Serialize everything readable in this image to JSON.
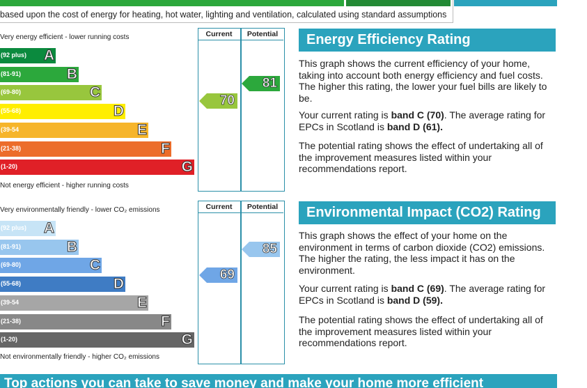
{
  "assumptions_text": "based upon the cost of energy for heating, hot water, lighting and ventilation, calculated using standard assumptions",
  "colors": {
    "accent": "#2ba3bd",
    "border": "#2a8fa8"
  },
  "energy": {
    "top_label": "Very energy efficient - lower running costs",
    "bottom_label": "Not energy efficient - higher running costs",
    "col_current": "Current",
    "col_potential": "Potential",
    "bands": [
      {
        "range": "(92 plus)",
        "letter": "A",
        "color": "#0b8a3e"
      },
      {
        "range": "(81-91)",
        "letter": "B",
        "color": "#2ca83c"
      },
      {
        "range": "(69-80)",
        "letter": "C",
        "color": "#98c63d"
      },
      {
        "range": "(55-68)",
        "letter": "D",
        "color": "#ffee00"
      },
      {
        "range": "(39-54",
        "letter": "E",
        "color": "#f6b52b"
      },
      {
        "range": "(21-38)",
        "letter": "F",
        "color": "#ec6d2b"
      },
      {
        "range": "(1-20)",
        "letter": "G",
        "color": "#e02027"
      }
    ],
    "current": "70",
    "potential": "81",
    "current_color": "#98c63d",
    "potential_color": "#2ca83c"
  },
  "environment": {
    "top_label": "Very environmentally friendly - lower CO₂ emissions",
    "bottom_label": "Not environmentally friendly - higher CO₂ emissions",
    "col_current": "Current",
    "col_potential": "Potential",
    "bands": [
      {
        "range": "(92 plus)",
        "letter": "A",
        "color": "#c7e4f6"
      },
      {
        "range": "(81-91)",
        "letter": "B",
        "color": "#98c6ee"
      },
      {
        "range": "(69-80)",
        "letter": "C",
        "color": "#6fa6e6"
      },
      {
        "range": "(55-68)",
        "letter": "D",
        "color": "#3f7cc4"
      },
      {
        "range": "(39-54",
        "letter": "E",
        "color": "#a6a6a6"
      },
      {
        "range": "(21-38)",
        "letter": "F",
        "color": "#888888"
      },
      {
        "range": "(1-20)",
        "letter": "G",
        "color": "#666666"
      }
    ],
    "current": "69",
    "potential": "85",
    "current_color": "#6fa6e6",
    "potential_color": "#98c6ee"
  },
  "energy_panel": {
    "title": "Energy Efficiency Rating",
    "p1": "This graph shows the current efficiency of your home, taking into account both energy efficiency and fuel costs. The higher this rating, the lower your fuel bills are likely to be.",
    "p2_before": "Your current rating is ",
    "p2_bold1": "band C (70)",
    "p2_mid": ". The average rating for EPCs in Scotland is ",
    "p2_bold2": "band D (61).",
    "p3": "The potential rating shows the effect of undertaking all of the improvement measures listed within your recommendations report."
  },
  "env_panel": {
    "title": "Environmental Impact (CO2) Rating",
    "p1": "This graph shows the effect of your home on the environment in terms of carbon dioxide (CO2) emissions. The higher the rating, the less impact it has on the environment.",
    "p2_before": "Your current rating is ",
    "p2_bold1": "band C (69)",
    "p2_mid": ". The average rating for EPCs in Scotland is ",
    "p2_bold2": "band D (59).",
    "p3": "The potential rating shows the effect of undertaking all of the improvement measures listed within your recommendations report."
  },
  "bottom_banner": "Top actions you can take to save money and make your home more efficient"
}
